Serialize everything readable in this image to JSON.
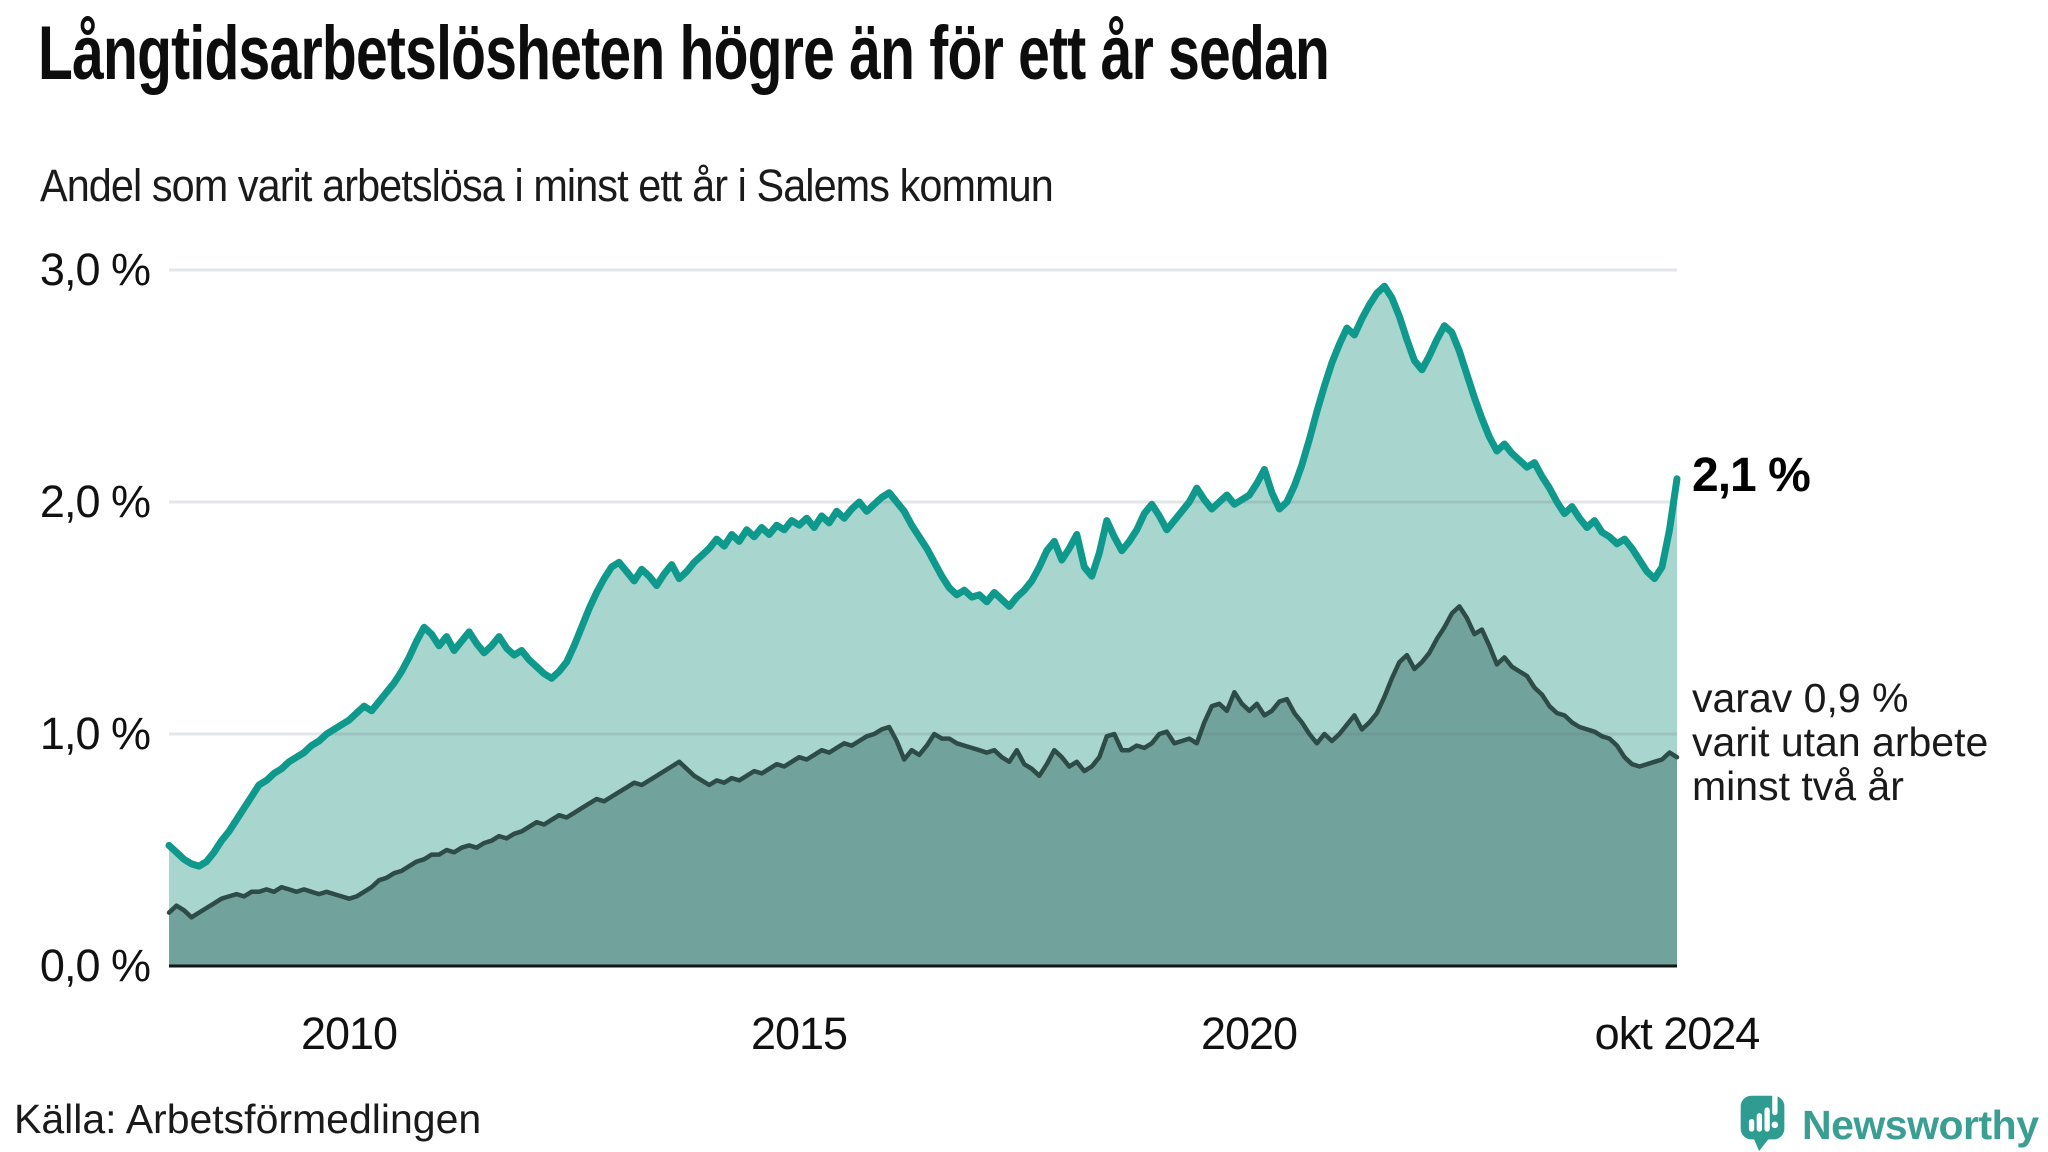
{
  "header": {
    "title": "Långtidsarbetslösheten högre än för ett år sedan",
    "subtitle": "Andel som varit arbetslösa i minst ett år i Salems kommun"
  },
  "y_axis": {
    "labels": [
      "3,0 %",
      "2,0 %",
      "1,0 %",
      "0,0 %"
    ],
    "values": [
      3,
      2,
      1,
      0
    ]
  },
  "x_axis": {
    "ticks": [
      {
        "label": "2010",
        "index": 24
      },
      {
        "label": "2015",
        "index": 84
      },
      {
        "label": "2020",
        "index": 144
      },
      {
        "label": "okt 2024",
        "index": 201
      }
    ]
  },
  "annotations": {
    "latest_value": "2,1 %",
    "secondary": [
      "varav 0,9 %",
      "varit utan arbete",
      "minst två år"
    ]
  },
  "source": "Källa: Arbetsförmedlingen",
  "logo": {
    "text": "Newsworthy"
  },
  "colors": {
    "teal_line": "#0e998c",
    "light_fill": "#a8d5ce",
    "dark_fill": "#71a39c",
    "dark_line": "#2d4b47",
    "gridline": "rgba(100,110,125,0.18)",
    "axis": "#161616",
    "logo_teal": "#2e9c90"
  },
  "chart_data": {
    "type": "area",
    "title": "Långtidsarbetslösheten högre än för ett år sedan",
    "subtitle": "Andel som varit arbetslösa i minst ett år i Salems kommun",
    "unit": "%",
    "frequency": "monthly",
    "x_start": "2008-01",
    "x_end": "2024-10",
    "ylim": [
      0,
      3.0
    ],
    "yticks": [
      0,
      1,
      2,
      3
    ],
    "xticks": [
      "2010",
      "2015",
      "2020",
      "okt 2024"
    ],
    "latest_long_term": 2.1,
    "latest_two_years": 0.9,
    "series": [
      {
        "name": "Arbetslösa minst ett år",
        "values": [
          0.52,
          0.49,
          0.46,
          0.44,
          0.43,
          0.45,
          0.49,
          0.54,
          0.58,
          0.63,
          0.68,
          0.73,
          0.78,
          0.8,
          0.83,
          0.85,
          0.88,
          0.9,
          0.92,
          0.95,
          0.97,
          1.0,
          1.02,
          1.04,
          1.06,
          1.09,
          1.12,
          1.1,
          1.14,
          1.18,
          1.22,
          1.27,
          1.33,
          1.4,
          1.46,
          1.43,
          1.38,
          1.42,
          1.36,
          1.4,
          1.44,
          1.39,
          1.35,
          1.38,
          1.42,
          1.37,
          1.34,
          1.36,
          1.32,
          1.29,
          1.26,
          1.24,
          1.27,
          1.31,
          1.38,
          1.46,
          1.54,
          1.61,
          1.67,
          1.72,
          1.74,
          1.7,
          1.66,
          1.71,
          1.68,
          1.64,
          1.69,
          1.73,
          1.67,
          1.7,
          1.74,
          1.77,
          1.8,
          1.84,
          1.81,
          1.86,
          1.83,
          1.88,
          1.85,
          1.89,
          1.86,
          1.9,
          1.88,
          1.92,
          1.9,
          1.93,
          1.89,
          1.94,
          1.91,
          1.96,
          1.93,
          1.97,
          2.0,
          1.96,
          1.99,
          2.02,
          2.04,
          2.0,
          1.96,
          1.9,
          1.85,
          1.8,
          1.74,
          1.68,
          1.63,
          1.6,
          1.62,
          1.59,
          1.6,
          1.57,
          1.61,
          1.58,
          1.55,
          1.59,
          1.62,
          1.66,
          1.72,
          1.79,
          1.83,
          1.75,
          1.8,
          1.86,
          1.72,
          1.68,
          1.78,
          1.92,
          1.85,
          1.79,
          1.83,
          1.88,
          1.95,
          1.99,
          1.94,
          1.88,
          1.92,
          1.96,
          2.0,
          2.06,
          2.01,
          1.97,
          2.0,
          2.03,
          1.99,
          2.01,
          2.03,
          2.08,
          2.14,
          2.04,
          1.97,
          2.0,
          2.07,
          2.16,
          2.27,
          2.39,
          2.5,
          2.6,
          2.68,
          2.75,
          2.72,
          2.79,
          2.85,
          2.9,
          2.93,
          2.88,
          2.8,
          2.7,
          2.61,
          2.57,
          2.63,
          2.7,
          2.76,
          2.73,
          2.65,
          2.55,
          2.45,
          2.36,
          2.28,
          2.22,
          2.25,
          2.21,
          2.18,
          2.15,
          2.17,
          2.11,
          2.06,
          2.0,
          1.95,
          1.98,
          1.93,
          1.89,
          1.92,
          1.87,
          1.85,
          1.82,
          1.84,
          1.8,
          1.75,
          1.7,
          1.67,
          1.72,
          1.88,
          2.1
        ]
      },
      {
        "name": "Utan arbete minst två år",
        "values": [
          0.23,
          0.26,
          0.24,
          0.21,
          0.23,
          0.25,
          0.27,
          0.29,
          0.3,
          0.31,
          0.3,
          0.32,
          0.32,
          0.33,
          0.32,
          0.34,
          0.33,
          0.32,
          0.33,
          0.32,
          0.31,
          0.32,
          0.31,
          0.3,
          0.29,
          0.3,
          0.32,
          0.34,
          0.37,
          0.38,
          0.4,
          0.41,
          0.43,
          0.45,
          0.46,
          0.48,
          0.48,
          0.5,
          0.49,
          0.51,
          0.52,
          0.51,
          0.53,
          0.54,
          0.56,
          0.55,
          0.57,
          0.58,
          0.6,
          0.62,
          0.61,
          0.63,
          0.65,
          0.64,
          0.66,
          0.68,
          0.7,
          0.72,
          0.71,
          0.73,
          0.75,
          0.77,
          0.79,
          0.78,
          0.8,
          0.82,
          0.84,
          0.86,
          0.88,
          0.85,
          0.82,
          0.8,
          0.78,
          0.8,
          0.79,
          0.81,
          0.8,
          0.82,
          0.84,
          0.83,
          0.85,
          0.87,
          0.86,
          0.88,
          0.9,
          0.89,
          0.91,
          0.93,
          0.92,
          0.94,
          0.96,
          0.95,
          0.97,
          0.99,
          1.0,
          1.02,
          1.03,
          0.97,
          0.89,
          0.93,
          0.91,
          0.95,
          1.0,
          0.98,
          0.98,
          0.96,
          0.95,
          0.94,
          0.93,
          0.92,
          0.93,
          0.9,
          0.88,
          0.93,
          0.87,
          0.85,
          0.82,
          0.87,
          0.93,
          0.9,
          0.86,
          0.88,
          0.84,
          0.86,
          0.9,
          0.99,
          1.0,
          0.93,
          0.93,
          0.95,
          0.94,
          0.96,
          1.0,
          1.01,
          0.96,
          0.97,
          0.98,
          0.96,
          1.05,
          1.12,
          1.13,
          1.1,
          1.18,
          1.13,
          1.1,
          1.13,
          1.08,
          1.1,
          1.14,
          1.15,
          1.09,
          1.05,
          1.0,
          0.96,
          1.0,
          0.97,
          1.0,
          1.04,
          1.08,
          1.02,
          1.05,
          1.09,
          1.16,
          1.24,
          1.31,
          1.34,
          1.28,
          1.31,
          1.35,
          1.41,
          1.46,
          1.52,
          1.55,
          1.5,
          1.43,
          1.45,
          1.38,
          1.3,
          1.33,
          1.29,
          1.27,
          1.25,
          1.2,
          1.17,
          1.12,
          1.09,
          1.08,
          1.05,
          1.03,
          1.02,
          1.01,
          0.99,
          0.98,
          0.95,
          0.9,
          0.87,
          0.86,
          0.87,
          0.88,
          0.89,
          0.92,
          0.9
        ]
      }
    ]
  }
}
